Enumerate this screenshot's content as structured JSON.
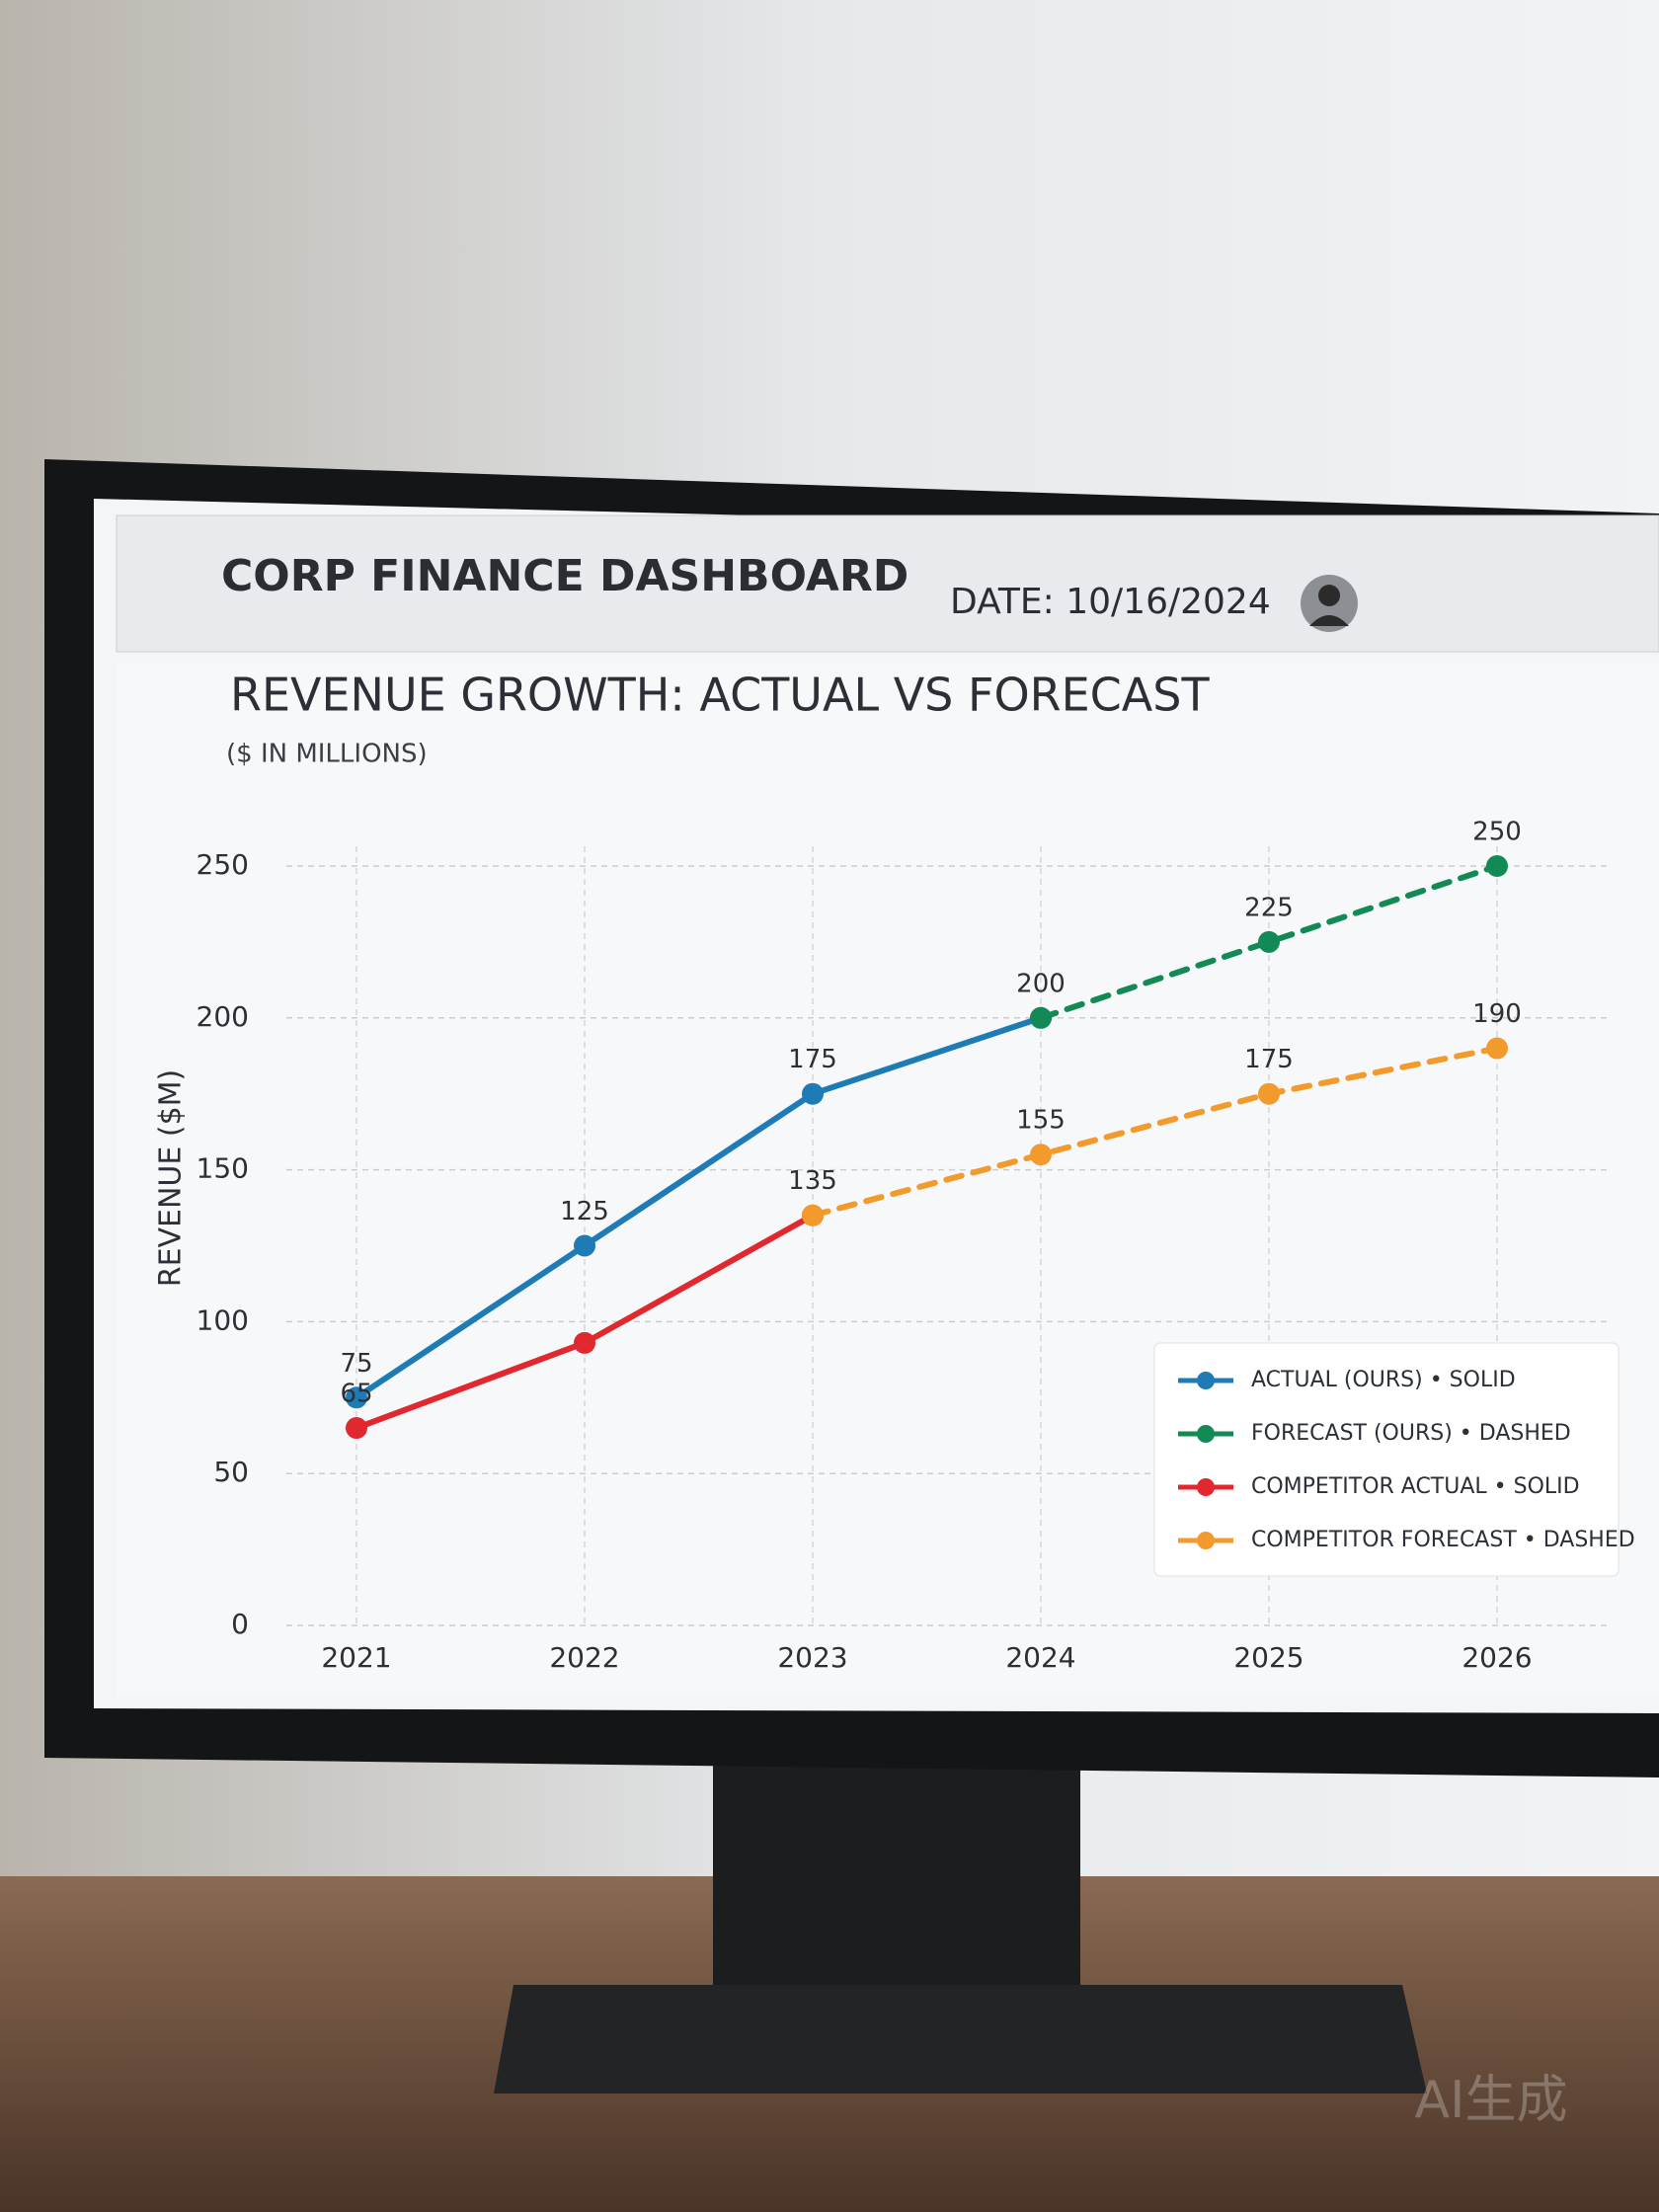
{
  "header": {
    "title": "CORP FINANCE DASHBOARD",
    "date": "DATE: 10/16/2024"
  },
  "watermark": "AI生成",
  "chart_data": {
    "type": "line",
    "title": "REVENUE GROWTH: ACTUAL VS FORECAST",
    "subtitle": "($ IN MILLIONS)",
    "y_label": "REVENUE ($M)",
    "categories": [
      "2021",
      "2022",
      "2023",
      "2024",
      "2025",
      "2026"
    ],
    "ylim": [
      0,
      250
    ],
    "yticks": [
      0,
      50,
      100,
      150,
      200,
      250
    ],
    "grid": true,
    "legend": "lower right",
    "series": [
      {
        "name": "ACTUAL (OURS) • SOLID",
        "color": "#1f7bb5",
        "dash": false,
        "values": [
          75,
          125,
          175,
          200,
          null,
          null
        ],
        "labeled": [
          true,
          true,
          true,
          false,
          false,
          false
        ]
      },
      {
        "name": "FORECAST (OURS) • DASHED",
        "color": "#138a55",
        "dash": true,
        "values": [
          null,
          null,
          null,
          200,
          225,
          250
        ],
        "labeled": [
          false,
          false,
          false,
          true,
          true,
          true
        ]
      },
      {
        "name": "COMPETITOR ACTUAL • SOLID",
        "color": "#e0282e",
        "dash": false,
        "values": [
          65,
          93,
          135,
          null,
          null,
          null
        ],
        "labeled": [
          true,
          false,
          true,
          false,
          false,
          false
        ]
      },
      {
        "name": "COMPETITOR FORECAST • DASHED",
        "color": "#f39a2c",
        "dash": true,
        "values": [
          null,
          null,
          135,
          155,
          175,
          190
        ],
        "labeled": [
          false,
          false,
          false,
          true,
          true,
          true
        ]
      }
    ]
  }
}
